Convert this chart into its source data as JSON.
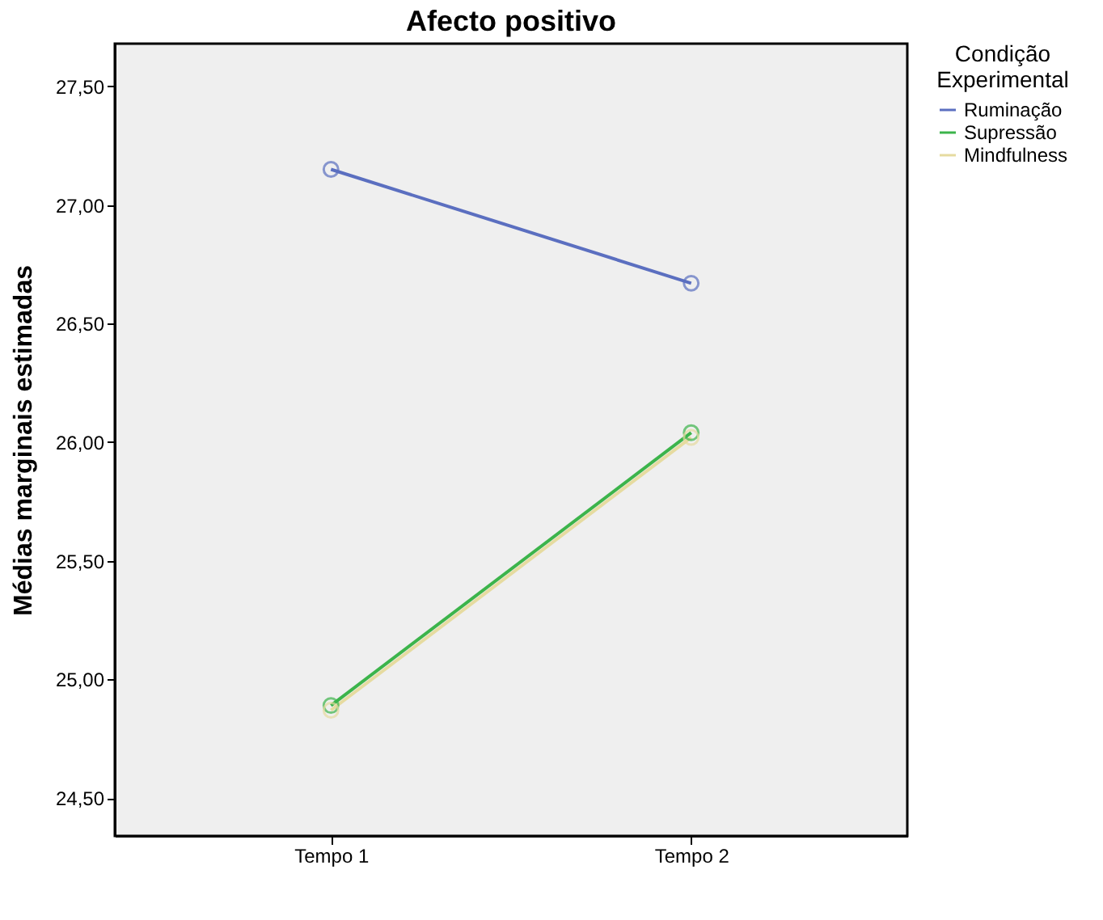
{
  "chart_data": {
    "type": "line",
    "title": "Afecto positivo",
    "ylabel": "Médias marginais estimadas",
    "legend_title": "Condição Experimental",
    "categories": [
      "Tempo 1",
      "Tempo 2"
    ],
    "series": [
      {
        "name": "Ruminação",
        "color": "#5b6fc0",
        "values": [
          27.15,
          26.67
        ]
      },
      {
        "name": "Supressão",
        "color": "#3cb44b",
        "values": [
          24.89,
          26.04
        ]
      },
      {
        "name": "Mindfulness",
        "color": "#e6dba0",
        "values": [
          24.87,
          26.02
        ]
      }
    ],
    "ylim": [
      24.34,
      27.68
    ],
    "yticks": [
      {
        "value": 24.5,
        "label": "24,50"
      },
      {
        "value": 25,
        "label": "25,00"
      },
      {
        "value": 25.5,
        "label": "25,50"
      },
      {
        "value": 26,
        "label": "26,00"
      },
      {
        "value": 26.5,
        "label": "26,50"
      },
      {
        "value": 27,
        "label": "27,00"
      },
      {
        "value": 27.5,
        "label": "27,50"
      }
    ],
    "grid": false,
    "legend": "top right",
    "marker": "circle",
    "line_style": "solid"
  }
}
